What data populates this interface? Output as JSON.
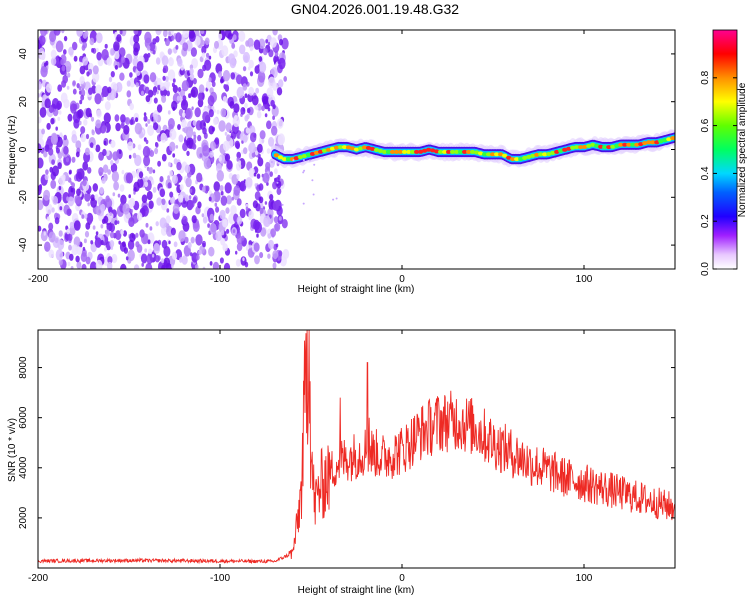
{
  "page_title": "GN04.2026.001.19.48.G32",
  "colors": {
    "snr_line": "#ee2a24",
    "noise_purple": "#7a2cf0",
    "axis": "#000000"
  },
  "chart_data": [
    {
      "type": "heatmap",
      "xlabel": "Height of straight line (km)",
      "ylabel": "Frequency (Hz)",
      "xlim": [
        -200,
        150
      ],
      "ylim": [
        -50,
        50
      ],
      "xticks": [
        -200,
        -100,
        0,
        100
      ],
      "yticks": [
        -40,
        -20,
        0,
        20,
        40
      ],
      "colorbar": {
        "label": "Normalized spectral amplitude",
        "range": [
          0,
          1
        ],
        "ticks": [
          "0.0",
          "0.2",
          "0.4",
          "0.6",
          "0.8"
        ],
        "colormap": [
          "#ffffff",
          "#e8c8ff",
          "#7a00ff",
          "#0000ff",
          "#00e0ff",
          "#00ff00",
          "#ffff00",
          "#ff8000",
          "#ff0000",
          "#ff00a0"
        ]
      },
      "noise_region_x": [
        -200,
        -67
      ],
      "ridge": {
        "x": [
          -70,
          -65,
          -60,
          -55,
          -50,
          -45,
          -40,
          -35,
          -30,
          -25,
          -20,
          -15,
          -10,
          -5,
          0,
          5,
          10,
          15,
          20,
          25,
          30,
          35,
          40,
          45,
          50,
          55,
          60,
          65,
          70,
          75,
          80,
          85,
          90,
          95,
          100,
          105,
          110,
          115,
          120,
          125,
          130,
          135,
          140,
          145,
          150
        ],
        "y": [
          -2,
          -4,
          -4,
          -3,
          -2,
          -1,
          0,
          1,
          1,
          0,
          1,
          0,
          -1,
          -1,
          -1,
          -1,
          -1,
          0,
          -1,
          -1,
          -1,
          -1,
          -1,
          -2,
          -2,
          -2,
          -4,
          -4,
          -3,
          -2,
          -2,
          -1,
          0,
          1,
          1,
          2,
          1,
          1,
          2,
          2,
          2,
          3,
          3,
          4,
          5
        ]
      }
    },
    {
      "type": "line",
      "xlabel": "Height of straight line (km)",
      "ylabel": "SNR (10 * v/v)",
      "xlim": [
        -200,
        150
      ],
      "ylim": [
        0,
        9500
      ],
      "xticks": [
        -200,
        -100,
        0,
        100
      ],
      "yticks": [
        2000,
        4000,
        6000,
        8000
      ],
      "envelope": {
        "x": [
          -200,
          -150,
          -100,
          -70,
          -60,
          -57,
          -55,
          -53,
          -51,
          -50,
          -48,
          -45,
          -40,
          -35,
          -30,
          -25,
          -20,
          -15,
          -10,
          0,
          10,
          20,
          30,
          40,
          50,
          60,
          70,
          80,
          90,
          100,
          110,
          120,
          130,
          140,
          150
        ],
        "y": [
          280,
          300,
          280,
          260,
          600,
          2000,
          3400,
          7500,
          9500,
          4500,
          2500,
          3200,
          3800,
          4200,
          4400,
          4500,
          4700,
          4600,
          4400,
          4700,
          5400,
          5800,
          5900,
          5600,
          5000,
          4600,
          4200,
          3900,
          3600,
          3400,
          3200,
          3000,
          2800,
          2600,
          2400
        ]
      },
      "spikes": [
        {
          "x": -53,
          "y": 8700
        },
        {
          "x": -51,
          "y": 9500
        },
        {
          "x": -34,
          "y": 6800
        },
        {
          "x": -19,
          "y": 8200
        },
        {
          "x": -18,
          "y": 6000
        },
        {
          "x": 20,
          "y": 6800
        }
      ]
    }
  ]
}
